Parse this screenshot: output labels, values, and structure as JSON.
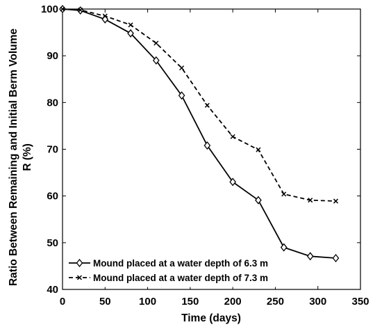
{
  "chart_data": {
    "type": "line",
    "xlabel": "Time (days)",
    "ylabel_lines": [
      "Ratio Between Remaining and Initial Berm Volume",
      "R (%)"
    ],
    "xlim": [
      0,
      350
    ],
    "ylim": [
      40,
      100
    ],
    "xticks": [
      0,
      50,
      100,
      150,
      200,
      250,
      300,
      350
    ],
    "yticks": [
      40,
      50,
      60,
      70,
      80,
      90,
      100
    ],
    "grid": false,
    "legend_position": "bottom-left",
    "series": [
      {
        "name": "Mound placed at a water depth of 6.3 m",
        "line_style": "solid",
        "marker": "diamond",
        "color": "#000000",
        "x": [
          0,
          21,
          50,
          80,
          110,
          140,
          170,
          200,
          230,
          260,
          291,
          321
        ],
        "y": [
          100,
          99.7,
          97.8,
          94.8,
          89,
          81.5,
          70.8,
          63,
          59.1,
          49,
          47.1,
          46.7
        ]
      },
      {
        "name": "Mound placed at a water depth of 7.3 m",
        "line_style": "dashed",
        "marker": "x",
        "color": "#000000",
        "x": [
          0,
          21,
          50,
          80,
          110,
          140,
          170,
          200,
          230,
          260,
          291,
          321
        ],
        "y": [
          100,
          99.8,
          98.5,
          96.6,
          92.7,
          87.4,
          79.4,
          72.7,
          69.9,
          60.4,
          59.1,
          58.9
        ]
      }
    ]
  }
}
